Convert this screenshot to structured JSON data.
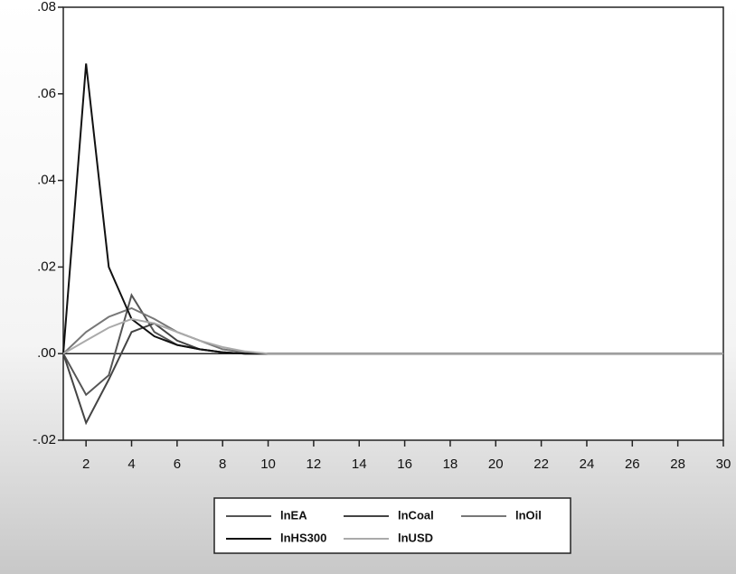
{
  "chart_data": {
    "type": "line",
    "x": [
      1,
      2,
      3,
      4,
      5,
      6,
      7,
      8,
      9,
      10,
      11,
      12,
      13,
      14,
      15,
      16,
      17,
      18,
      19,
      20,
      21,
      22,
      23,
      24,
      25,
      26,
      27,
      28,
      29,
      30
    ],
    "series": [
      {
        "name": "lnEA",
        "color": "#555555",
        "values": [
          0,
          -0.0095,
          -0.005,
          0.0135,
          0.005,
          0.002,
          0.001,
          0.0003,
          0,
          0,
          0,
          0,
          0,
          0,
          0,
          0,
          0,
          0,
          0,
          0,
          0,
          0,
          0,
          0,
          0,
          0,
          0,
          0,
          0,
          0
        ]
      },
      {
        "name": "lnCoal",
        "color": "#444444",
        "values": [
          0,
          -0.016,
          -0.006,
          0.005,
          0.007,
          0.003,
          0.001,
          0.0003,
          0,
          0,
          0,
          0,
          0,
          0,
          0,
          0,
          0,
          0,
          0,
          0,
          0,
          0,
          0,
          0,
          0,
          0,
          0,
          0,
          0,
          0
        ]
      },
      {
        "name": "lnOil",
        "color": "#777777",
        "values": [
          0,
          0.005,
          0.0085,
          0.0105,
          0.008,
          0.005,
          0.003,
          0.001,
          0.0003,
          0,
          0,
          0,
          0,
          0,
          0,
          0,
          0,
          0,
          0,
          0,
          0,
          0,
          0,
          0,
          0,
          0,
          0,
          0,
          0,
          0
        ]
      },
      {
        "name": "lnHS300",
        "color": "#111111",
        "values": [
          0,
          0.067,
          0.02,
          0.008,
          0.004,
          0.002,
          0.001,
          0.0003,
          0,
          0,
          0,
          0,
          0,
          0,
          0,
          0,
          0,
          0,
          0,
          0,
          0,
          0,
          0,
          0,
          0,
          0,
          0,
          0,
          0,
          0
        ]
      },
      {
        "name": "lnUSD",
        "color": "#aaaaaa",
        "values": [
          0,
          0.003,
          0.006,
          0.008,
          0.007,
          0.005,
          0.003,
          0.0015,
          0.0005,
          0,
          0,
          0,
          0,
          0,
          0,
          0,
          0,
          0,
          0,
          0,
          0,
          0,
          0,
          0,
          0,
          0,
          0,
          0,
          0,
          0
        ]
      }
    ],
    "xlim": [
      1,
      30
    ],
    "xticks": [
      2,
      4,
      6,
      8,
      10,
      12,
      14,
      16,
      18,
      20,
      22,
      24,
      26,
      28,
      30
    ],
    "ylim": [
      -0.02,
      0.08
    ],
    "yticks": [
      {
        "value": -0.02,
        "label": "-.02"
      },
      {
        "value": 0,
        "label": ".00"
      },
      {
        "value": 0.02,
        "label": ".02"
      },
      {
        "value": 0.04,
        "label": ".04"
      },
      {
        "value": 0.06,
        "label": ".06"
      },
      {
        "value": 0.08,
        "label": ".08"
      }
    ],
    "zero_line": true,
    "legend": "bottom"
  }
}
